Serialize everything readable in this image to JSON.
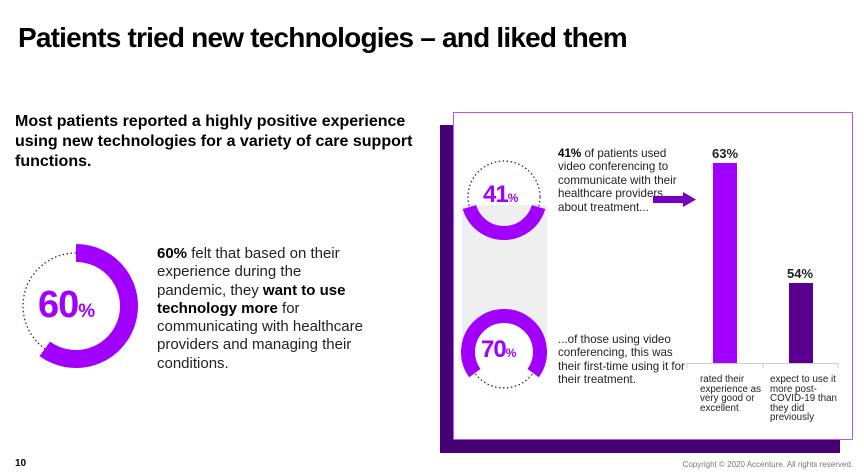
{
  "title": "Patients tried new technologies – and liked them",
  "subtitle": "Most patients reported a highly positive experience using new technologies for a variety of care support functions.",
  "left_stat": {
    "value": "60",
    "unit": "%",
    "fraction": 0.6,
    "text": {
      "bold1": "60%",
      "t1": " felt that based on their experience during the pandemic, they ",
      "bold2": "want to use technology more",
      "t2": " for communicating with healthcare providers and managing their conditions."
    }
  },
  "panel": {
    "stat1": {
      "value": "41",
      "unit": "%",
      "fraction": 0.41,
      "bold": "41%",
      "text": " of patients used video conferencing to communicate with their healthcare providers about treatment..."
    },
    "stat2": {
      "value": "70",
      "unit": "%",
      "fraction": 0.7,
      "text": "...of those using video conferencing, this was their first-time using it for their treatment."
    }
  },
  "chart_data": {
    "type": "bar",
    "categories": [
      "rated their experience as very good or excellent",
      "expect to use it more post-COVID-19 than they did previously"
    ],
    "values": [
      63,
      54
    ],
    "labels": [
      "63%",
      "54%"
    ],
    "ylim": [
      48,
      63
    ],
    "colors": [
      "#A100FF",
      "#5A0091"
    ],
    "grid": false
  },
  "colors": {
    "accent": "#A100FF",
    "dark": "#460073"
  },
  "footer": {
    "page": "10",
    "copyright": "Copyright © 2020 Accenture. All rights reserved."
  }
}
